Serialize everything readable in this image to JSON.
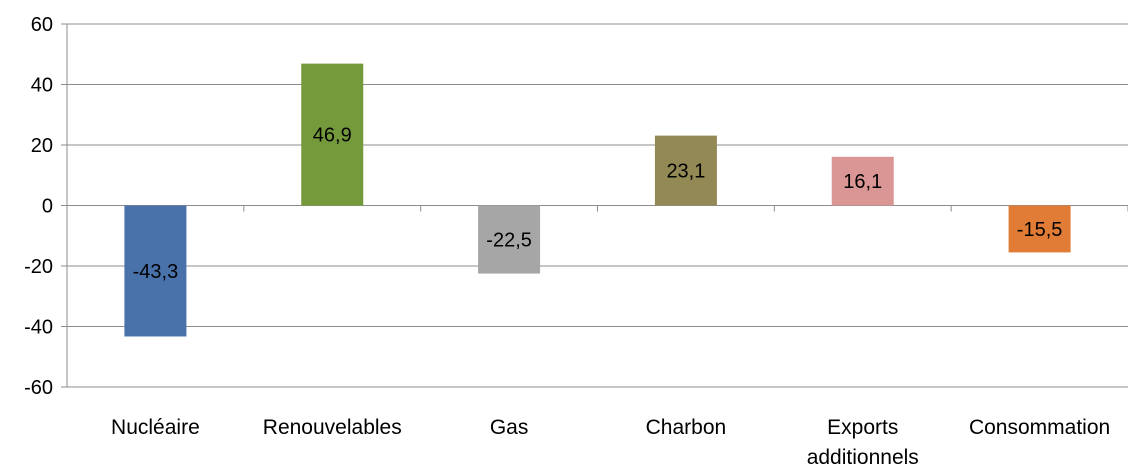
{
  "chart_data": {
    "type": "bar",
    "title": "",
    "xlabel": "",
    "ylabel": "",
    "categories": [
      "Nucléaire",
      "Renouvelables",
      "Gas",
      "Charbon",
      "Exports additionnels",
      "Consommation"
    ],
    "values": [
      -43.3,
      46.9,
      -22.5,
      23.1,
      16.1,
      -15.5
    ],
    "value_labels": [
      "-43,3",
      "46,9",
      "-22,5",
      "23,1",
      "16,1",
      "-15,5"
    ],
    "colors": [
      "#4a72aa",
      "#759a3c",
      "#a6a6a6",
      "#938954",
      "#d99694",
      "#e07c35"
    ],
    "ylim": [
      -60,
      60
    ],
    "yticks": [
      60,
      40,
      20,
      0,
      -20,
      -40,
      -60
    ],
    "grid": true,
    "legend": "none"
  }
}
